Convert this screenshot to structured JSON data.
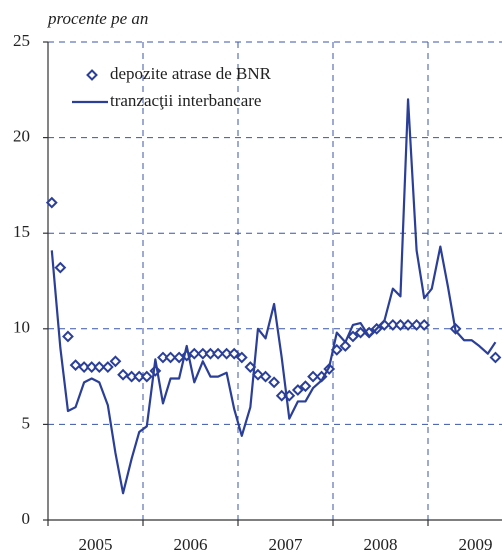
{
  "chart_data": {
    "type": "line",
    "axis_label": "procente pe an",
    "x": [
      2005.04,
      2005.13,
      2005.21,
      2005.29,
      2005.38,
      2005.46,
      2005.54,
      2005.63,
      2005.71,
      2005.79,
      2005.88,
      2005.96,
      2006.04,
      2006.13,
      2006.21,
      2006.29,
      2006.38,
      2006.46,
      2006.54,
      2006.63,
      2006.71,
      2006.79,
      2006.88,
      2006.96,
      2007.04,
      2007.13,
      2007.21,
      2007.29,
      2007.38,
      2007.46,
      2007.54,
      2007.63,
      2007.71,
      2007.79,
      2007.88,
      2007.96,
      2008.04,
      2008.13,
      2008.21,
      2008.29,
      2008.38,
      2008.46,
      2008.54,
      2008.63,
      2008.71,
      2008.79,
      2008.88,
      2008.96,
      2009.04,
      2009.13,
      2009.21,
      2009.29,
      2009.38,
      2009.46,
      2009.54,
      2009.63,
      2009.71
    ],
    "series": [
      {
        "name": "depozite atrase de BNR",
        "marker": "diamond",
        "color": "#2b3f99",
        "values": [
          16.6,
          13.2,
          9.6,
          8.1,
          8.0,
          8.0,
          8.0,
          8.0,
          8.3,
          7.6,
          7.5,
          7.5,
          7.5,
          7.8,
          8.5,
          8.5,
          8.5,
          8.6,
          8.7,
          8.7,
          8.7,
          8.7,
          8.7,
          8.7,
          8.5,
          8.0,
          7.6,
          7.5,
          7.2,
          6.5,
          6.5,
          6.8,
          7.0,
          7.5,
          7.5,
          7.9,
          8.9,
          9.1,
          9.6,
          9.8,
          9.8,
          10.0,
          10.2,
          10.2,
          10.2,
          10.2,
          10.2,
          10.2,
          null,
          null,
          null,
          10.0,
          null,
          null,
          null,
          null,
          8.5
        ]
      },
      {
        "name": "tranzacţii interbancare",
        "marker": "line",
        "color": "#2b3f99",
        "values": [
          14.1,
          9.0,
          5.7,
          5.9,
          7.2,
          7.4,
          7.2,
          6.0,
          3.5,
          1.4,
          3.2,
          4.6,
          4.9,
          8.4,
          6.1,
          7.4,
          7.4,
          9.1,
          7.2,
          8.3,
          7.5,
          7.5,
          7.7,
          5.8,
          4.4,
          5.9,
          10.0,
          9.5,
          11.3,
          8.5,
          5.3,
          6.2,
          6.2,
          6.9,
          7.3,
          8.0,
          9.8,
          9.3,
          10.2,
          10.3,
          9.6,
          10.0,
          10.4,
          12.1,
          11.7,
          22.0,
          14.1,
          11.6,
          12.1,
          14.3,
          12.2,
          9.9,
          9.4,
          9.4,
          9.1,
          8.7,
          9.3
        ]
      }
    ],
    "xlim": [
      2005,
      2010
    ],
    "xticks": [
      {
        "value": 2005.5,
        "label": "2005"
      },
      {
        "value": 2006.5,
        "label": "2006"
      },
      {
        "value": 2007.5,
        "label": "2007"
      },
      {
        "value": 2008.5,
        "label": "2008"
      },
      {
        "value": 2009.5,
        "label": "2009"
      }
    ],
    "xgrid": [
      2006,
      2007,
      2008,
      2009
    ],
    "ylim": [
      0,
      25
    ],
    "yticks": [
      0,
      5,
      10,
      15,
      20,
      25
    ],
    "grid": true,
    "legend": "upper left"
  }
}
